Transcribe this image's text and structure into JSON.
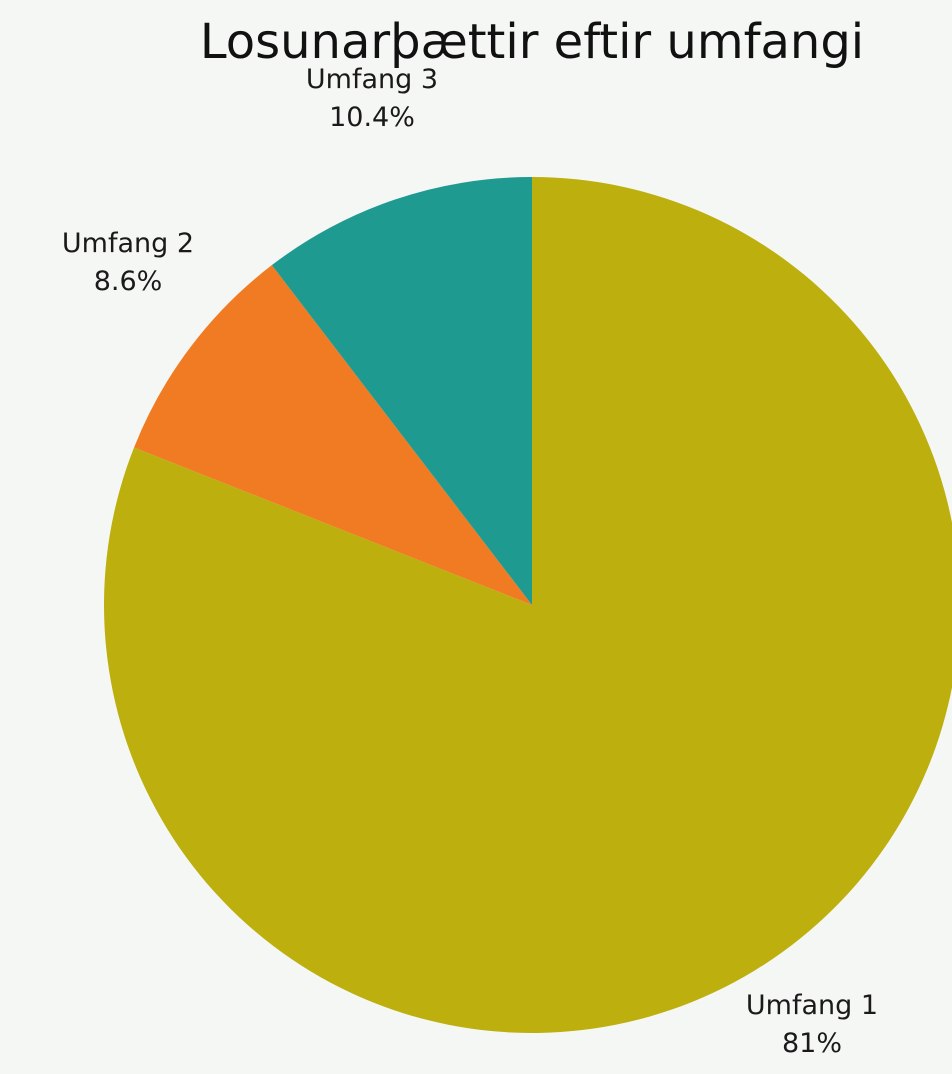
{
  "chart_data": {
    "type": "pie",
    "title": "Losunarþættir eftir umfangi",
    "slices": [
      {
        "label": "Umfang 1",
        "value": 81,
        "value_label": "81%",
        "color": "#bcaf0e"
      },
      {
        "label": "Umfang 2",
        "value": 8.6,
        "value_label": "8.6%",
        "color": "#f07b22"
      },
      {
        "label": "Umfang 3",
        "value": 10.4,
        "value_label": "10.4%",
        "color": "#1e9a90"
      }
    ],
    "start": "12 o'clock",
    "direction": "clockwise",
    "legend": "none"
  }
}
